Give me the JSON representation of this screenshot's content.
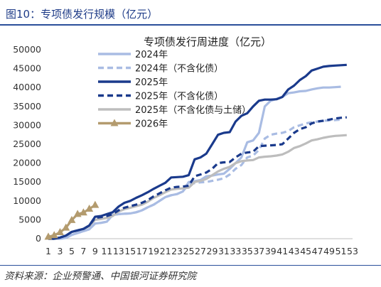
{
  "figure": {
    "title": "图10：专项债发行规模（亿元）",
    "source": "资料来源：企业预警通、中国银河证券研究院"
  },
  "colors": {
    "title_blue": "#1f3c88",
    "rule_blue": "#2a4f9a"
  },
  "chart_data": {
    "type": "line",
    "title": "专项债发行周进度（亿元）",
    "xlabel": "",
    "ylabel": "",
    "xlim": [
      1,
      53
    ],
    "ylim": [
      0,
      50000
    ],
    "y_ticks": [
      0,
      5000,
      10000,
      15000,
      20000,
      25000,
      30000,
      35000,
      40000,
      45000,
      50000
    ],
    "x_tick_labels": [
      "1",
      "3",
      "5",
      "7",
      "9",
      "11",
      "13",
      "15",
      "17",
      "19",
      "21",
      "23",
      "25",
      "27",
      "29",
      "31",
      "33",
      "35",
      "37",
      "39",
      "41",
      "43",
      "45",
      "47",
      "49",
      "51",
      "53"
    ],
    "legend_position": "top-center",
    "grid": false,
    "series": [
      {
        "name": "2024年",
        "color": "#a9bce3",
        "dash": "solid",
        "marker": "none",
        "x": [
          1,
          2,
          3,
          4,
          5,
          6,
          7,
          8,
          9,
          10,
          11,
          12,
          13,
          14,
          15,
          16,
          17,
          18,
          19,
          20,
          21,
          22,
          23,
          24,
          25,
          26,
          27,
          28,
          29,
          30,
          31,
          32,
          33,
          34,
          35,
          36,
          37,
          38,
          39,
          40,
          41,
          42,
          43,
          44,
          45,
          46,
          47,
          48,
          49,
          50,
          51
        ],
        "values": [
          0,
          0,
          0,
          200,
          1000,
          1500,
          2000,
          2500,
          4000,
          4200,
          4500,
          6300,
          6500,
          6600,
          6700,
          7000,
          7500,
          8300,
          9000,
          10000,
          11000,
          11500,
          11800,
          12500,
          15000,
          15200,
          15500,
          16500,
          16700,
          17000,
          17200,
          18500,
          20000,
          21500,
          25500,
          26000,
          28000,
          35000,
          36500,
          37000,
          37500,
          38500,
          38700,
          39000,
          39100,
          39500,
          39800,
          40000,
          40000,
          40100,
          40200
        ]
      },
      {
        "name": "2024年（不含化债）",
        "color": "#a9bce3",
        "dash": "dashed",
        "marker": "none",
        "x": [
          1,
          2,
          3,
          4,
          5,
          6,
          7,
          8,
          9,
          10,
          11,
          12,
          13,
          14,
          15,
          16,
          17,
          18,
          19,
          20,
          21,
          22,
          23,
          24,
          25,
          26,
          27,
          28,
          29,
          30,
          31,
          32,
          33,
          34,
          35,
          36,
          37,
          38,
          39,
          40,
          41,
          42,
          43,
          44,
          45,
          46,
          47,
          48,
          49,
          50,
          51
        ],
        "values": [
          0,
          0,
          0,
          200,
          1000,
          1500,
          2000,
          2500,
          4000,
          4200,
          4500,
          6300,
          6500,
          6600,
          6700,
          7000,
          7500,
          8300,
          9000,
          10000,
          11000,
          11500,
          11800,
          12500,
          14500,
          14700,
          14900,
          15000,
          15300,
          15600,
          16000,
          17000,
          18500,
          19500,
          21500,
          22000,
          23500,
          26500,
          27500,
          27800,
          28000,
          28500,
          29500,
          30000,
          30500,
          30800,
          31000,
          31200,
          31300,
          31400,
          31500
        ]
      },
      {
        "name": "2025年",
        "color": "#1a3a8c",
        "dash": "solid",
        "marker": "none",
        "x": [
          1,
          2,
          3,
          4,
          5,
          6,
          7,
          8,
          9,
          10,
          11,
          12,
          13,
          14,
          15,
          16,
          17,
          18,
          19,
          20,
          21,
          22,
          23,
          24,
          25,
          26,
          27,
          28,
          29,
          30,
          31,
          32,
          33,
          34,
          35,
          36,
          37,
          38,
          39,
          40,
          41,
          42,
          43,
          44,
          45,
          46,
          47,
          48,
          49,
          50,
          51,
          52
        ],
        "values": [
          0,
          0,
          300,
          800,
          1800,
          2200,
          2600,
          3500,
          5800,
          6000,
          6500,
          7000,
          8500,
          9500,
          10000,
          10800,
          11500,
          12300,
          13200,
          14000,
          14800,
          16200,
          16300,
          16400,
          16800,
          21000,
          21500,
          22500,
          25000,
          27500,
          28000,
          28200,
          31000,
          32500,
          33200,
          35000,
          36500,
          36800,
          36800,
          36900,
          37500,
          39500,
          40500,
          42000,
          43000,
          44500,
          45000,
          45500,
          45700,
          45800,
          45900,
          46000
        ]
      },
      {
        "name": "2025年（不含化债）",
        "color": "#1a3a8c",
        "dash": "dashed",
        "marker": "none",
        "x": [
          1,
          2,
          3,
          4,
          5,
          6,
          7,
          8,
          9,
          10,
          11,
          12,
          13,
          14,
          15,
          16,
          17,
          18,
          19,
          20,
          21,
          22,
          23,
          24,
          25,
          26,
          27,
          28,
          29,
          30,
          31,
          32,
          33,
          34,
          35,
          36,
          37,
          38,
          39,
          40,
          41,
          42,
          43,
          44,
          45,
          46,
          47,
          48,
          49,
          50,
          51,
          52
        ],
        "values": [
          0,
          0,
          300,
          800,
          1800,
          2200,
          2600,
          3500,
          5500,
          5700,
          6000,
          6500,
          7500,
          8200,
          8600,
          9000,
          9500,
          10200,
          11200,
          12000,
          12800,
          13500,
          13700,
          13800,
          14000,
          16500,
          17000,
          17500,
          18500,
          20000,
          20200,
          20300,
          21500,
          22500,
          22800,
          23000,
          24500,
          24600,
          24700,
          24800,
          25000,
          26500,
          28000,
          29000,
          29500,
          30500,
          31000,
          31200,
          31500,
          31800,
          32000,
          32100
        ]
      },
      {
        "name": "2025年（不含化债与土储）",
        "color": "#bdbdbd",
        "dash": "solid",
        "marker": "none",
        "x": [
          1,
          2,
          3,
          4,
          5,
          6,
          7,
          8,
          9,
          10,
          11,
          12,
          13,
          14,
          15,
          16,
          17,
          18,
          19,
          20,
          21,
          22,
          23,
          24,
          25,
          26,
          27,
          28,
          29,
          30,
          31,
          32,
          33,
          34,
          35,
          36,
          37,
          38,
          39,
          40,
          41,
          42,
          43,
          44,
          45,
          46,
          47,
          48,
          49,
          50,
          51,
          52
        ],
        "values": [
          0,
          0,
          300,
          800,
          1800,
          2200,
          2600,
          3300,
          5000,
          5200,
          5500,
          6000,
          7200,
          7800,
          8200,
          8600,
          9000,
          9800,
          10800,
          11500,
          12300,
          13000,
          13200,
          13300,
          13500,
          15000,
          15300,
          15800,
          16800,
          17800,
          18500,
          19000,
          20000,
          20500,
          20700,
          20800,
          21500,
          21700,
          21800,
          22000,
          22300,
          23000,
          24000,
          24500,
          25200,
          26000,
          26300,
          26700,
          27000,
          27200,
          27300,
          27400
        ]
      },
      {
        "name": "2026年",
        "color": "#b39b6e",
        "dash": "solid",
        "marker": "triangle",
        "x": [
          1,
          2,
          3,
          4,
          5,
          6,
          7,
          8,
          9
        ],
        "values": [
          500,
          900,
          1700,
          2900,
          4900,
          6500,
          6900,
          7900,
          8900
        ]
      }
    ]
  }
}
